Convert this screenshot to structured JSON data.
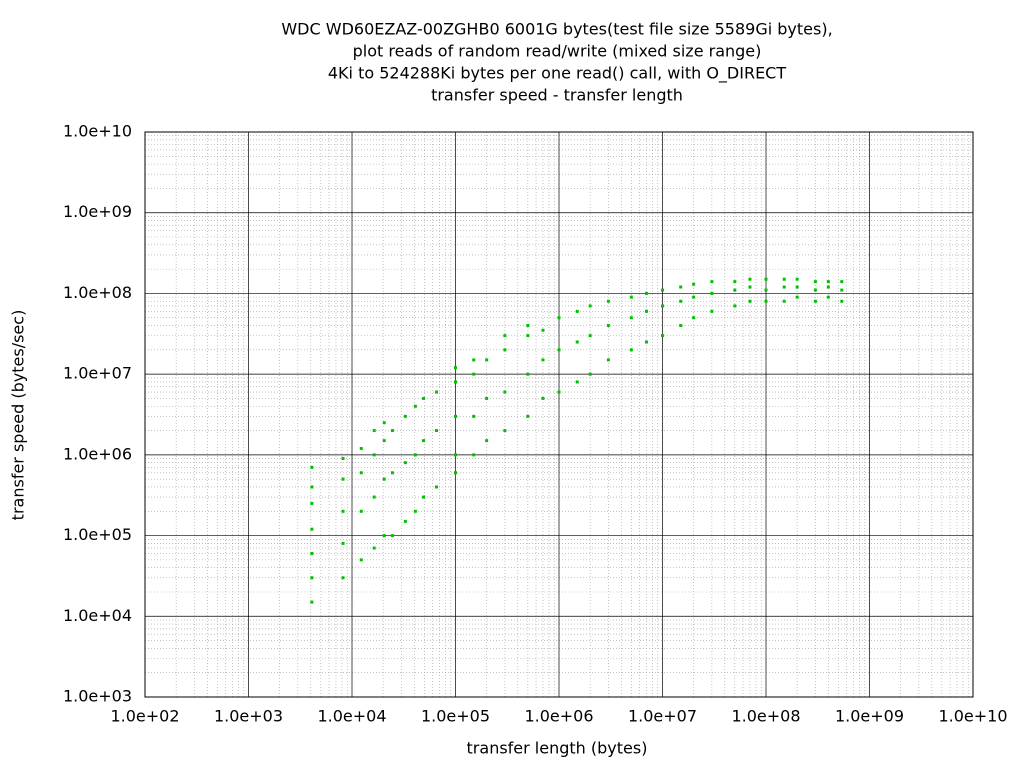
{
  "chart_data": {
    "type": "scatter",
    "title": [
      "WDC WD60EZAZ-00ZGHB0 6001G bytes(test file size 5589Gi bytes),",
      "plot reads of random read/write (mixed size range)",
      "4Ki to 524288Ki bytes per one read() call, with O_DIRECT",
      "transfer speed - transfer length"
    ],
    "x_label": "transfer length (bytes)",
    "y_label": "transfer speed (bytes/sec)",
    "log_x": true,
    "log_y": true,
    "grid": true,
    "minor_grid": true,
    "xlim": [
      100,
      10000000000
    ],
    "ylim": [
      1000,
      10000000000
    ],
    "xticks": [
      {
        "value": 100,
        "label": "1.0e+02"
      },
      {
        "value": 1000,
        "label": "1.0e+03"
      },
      {
        "value": 10000,
        "label": "1.0e+04"
      },
      {
        "value": 100000,
        "label": "1.0e+05"
      },
      {
        "value": 1000000,
        "label": "1.0e+06"
      },
      {
        "value": 10000000,
        "label": "1.0e+07"
      },
      {
        "value": 100000000,
        "label": "1.0e+08"
      },
      {
        "value": 1000000000,
        "label": "1.0e+09"
      },
      {
        "value": 10000000000,
        "label": "1.0e+10"
      }
    ],
    "yticks": [
      {
        "value": 1000,
        "label": "1.0e+03"
      },
      {
        "value": 10000,
        "label": "1.0e+04"
      },
      {
        "value": 100000,
        "label": "1.0e+05"
      },
      {
        "value": 1000000,
        "label": "1.0e+06"
      },
      {
        "value": 10000000,
        "label": "1.0e+07"
      },
      {
        "value": 100000000,
        "label": "1.0e+08"
      },
      {
        "value": 1000000000,
        "label": "1.0e+09"
      },
      {
        "value": 10000000000,
        "label": "1.0e+10"
      }
    ],
    "series": [
      {
        "color": "#00c000",
        "x": [
          4096,
          4096,
          4096,
          4096,
          4096,
          4096,
          4096,
          8192,
          8192,
          8192,
          8192,
          8192,
          12288,
          12288,
          12288,
          12288,
          16384,
          16384,
          16384,
          16384,
          20480,
          20480,
          20480,
          20480,
          24576,
          24576,
          24576,
          32768,
          32768,
          32768,
          40960,
          40960,
          40960,
          49152,
          49152,
          49152,
          65536,
          65536,
          65536,
          100000,
          100000,
          100000,
          100000,
          100000,
          150000,
          150000,
          150000,
          150000,
          200000,
          200000,
          200000,
          300000,
          300000,
          300000,
          300000,
          500000,
          500000,
          500000,
          500000,
          700000,
          700000,
          700000,
          1000000,
          1000000,
          1000000,
          1500000,
          1500000,
          1500000,
          2000000,
          2000000,
          2000000,
          3000000,
          3000000,
          3000000,
          5000000,
          5000000,
          5000000,
          7000000,
          7000000,
          7000000,
          10000000,
          10000000,
          10000000,
          15000000,
          15000000,
          15000000,
          20000000,
          20000000,
          20000000,
          30000000,
          30000000,
          30000000,
          50000000,
          50000000,
          50000000,
          70000000,
          70000000,
          70000000,
          100000000,
          100000000,
          100000000,
          150000000,
          150000000,
          150000000,
          200000000,
          200000000,
          200000000,
          300000000,
          300000000,
          300000000,
          400000000,
          400000000,
          400000000,
          540000000,
          540000000,
          540000000
        ],
        "values": [
          15000,
          30000,
          60000,
          120000,
          250000,
          400000,
          700000,
          30000,
          80000,
          200000,
          500000,
          900000,
          50000,
          200000,
          600000,
          1200000,
          70000,
          300000,
          1000000,
          2000000,
          100000,
          500000,
          1500000,
          2500000,
          100000,
          600000,
          2000000,
          150000,
          800000,
          3000000,
          200000,
          1000000,
          4000000,
          300000,
          1500000,
          5000000,
          400000,
          2000000,
          6000000,
          600000,
          1000000,
          3000000,
          8000000,
          12000000,
          1000000,
          3000000,
          10000000,
          15000000,
          1500000,
          5000000,
          15000000,
          2000000,
          6000000,
          20000000,
          30000000,
          3000000,
          10000000,
          30000000,
          40000000,
          5000000,
          15000000,
          35000000,
          6000000,
          20000000,
          50000000,
          8000000,
          25000000,
          60000000,
          10000000,
          30000000,
          70000000,
          15000000,
          40000000,
          80000000,
          20000000,
          50000000,
          90000000,
          25000000,
          60000000,
          100000000,
          30000000,
          70000000,
          110000000,
          40000000,
          80000000,
          120000000,
          50000000,
          90000000,
          130000000,
          60000000,
          100000000,
          140000000,
          70000000,
          110000000,
          140000000,
          80000000,
          120000000,
          150000000,
          80000000,
          110000000,
          150000000,
          80000000,
          120000000,
          150000000,
          90000000,
          120000000,
          150000000,
          80000000,
          110000000,
          140000000,
          90000000,
          120000000,
          140000000,
          80000000,
          110000000,
          140000000
        ]
      }
    ]
  }
}
